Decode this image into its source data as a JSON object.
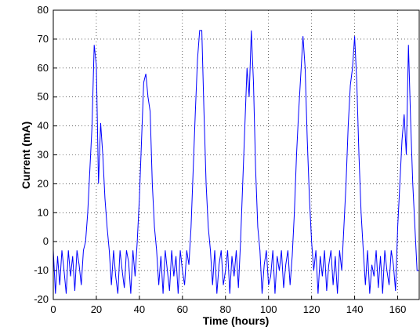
{
  "chart_data": {
    "type": "line",
    "xlabel": "Time (hours)",
    "ylabel": "Current (mA)",
    "xlim": [
      0,
      170
    ],
    "ylim": [
      -20,
      80
    ],
    "xticks": [
      0,
      20,
      40,
      60,
      80,
      100,
      120,
      140,
      160
    ],
    "yticks": [
      -20,
      -10,
      0,
      10,
      20,
      30,
      40,
      50,
      60,
      70,
      80
    ],
    "grid": true,
    "x": [
      0,
      1,
      2,
      3,
      4,
      5,
      6,
      7,
      8,
      9,
      10,
      11,
      12,
      13,
      14,
      15,
      16,
      17,
      18,
      19,
      20,
      21,
      22,
      23,
      24,
      25,
      26,
      27,
      28,
      29,
      30,
      31,
      32,
      33,
      34,
      35,
      36,
      37,
      38,
      39,
      40,
      41,
      42,
      43,
      44,
      45,
      46,
      47,
      48,
      49,
      50,
      51,
      52,
      53,
      54,
      55,
      56,
      57,
      58,
      59,
      60,
      61,
      62,
      63,
      64,
      65,
      66,
      67,
      68,
      69,
      70,
      71,
      72,
      73,
      74,
      75,
      76,
      77,
      78,
      79,
      80,
      81,
      82,
      83,
      84,
      85,
      86,
      87,
      88,
      89,
      90,
      91,
      92,
      93,
      94,
      95,
      96,
      97,
      98,
      99,
      100,
      101,
      102,
      103,
      104,
      105,
      106,
      107,
      108,
      109,
      110,
      111,
      112,
      113,
      114,
      115,
      116,
      117,
      118,
      119,
      120,
      121,
      122,
      123,
      124,
      125,
      126,
      127,
      128,
      129,
      130,
      131,
      132,
      133,
      134,
      135,
      136,
      137,
      138,
      139,
      140,
      141,
      142,
      143,
      144,
      145,
      146,
      147,
      148,
      149,
      150,
      151,
      152,
      153,
      154,
      155,
      156,
      157,
      158,
      159,
      160,
      161,
      162,
      163,
      164,
      165,
      166,
      167,
      168,
      169,
      170
    ],
    "series": [
      {
        "color": "#0000ff",
        "values": [
          -3,
          -18,
          -5,
          -15,
          -3,
          -10,
          -18,
          -3,
          -12,
          -5,
          -17,
          -3,
          -8,
          -15,
          -3,
          0,
          10,
          25,
          40,
          68,
          61,
          20,
          41,
          30,
          15,
          5,
          -3,
          -15,
          -3,
          -12,
          -18,
          -3,
          -10,
          -16,
          -3,
          -7,
          -18,
          -3,
          -12,
          0,
          15,
          35,
          55,
          58,
          50,
          45,
          20,
          5,
          -3,
          -15,
          -5,
          -18,
          -3,
          -10,
          -17,
          -3,
          -12,
          -5,
          -18,
          -3,
          -10,
          -15,
          -3,
          -8,
          5,
          25,
          45,
          63,
          73,
          73,
          45,
          20,
          5,
          -3,
          -15,
          -3,
          -18,
          -8,
          -3,
          -15,
          -10,
          -3,
          -18,
          -5,
          -12,
          -3,
          -16,
          0,
          20,
          40,
          60,
          50,
          73,
          55,
          25,
          5,
          -3,
          -18,
          -8,
          -3,
          -15,
          -12,
          -3,
          -18,
          -5,
          -10,
          -3,
          -16,
          -8,
          -3,
          -15,
          -5,
          10,
          30,
          45,
          58,
          71,
          60,
          35,
          15,
          0,
          -10,
          -3,
          -18,
          -5,
          -12,
          -3,
          -17,
          -8,
          -3,
          -15,
          -5,
          -18,
          -3,
          -10,
          5,
          20,
          40,
          54,
          60,
          71,
          55,
          30,
          10,
          -3,
          -15,
          -3,
          -18,
          -8,
          -12,
          -3,
          -16,
          -5,
          -18,
          -3,
          -10,
          -15,
          -3,
          -8,
          -17,
          5,
          20,
          35,
          44,
          30,
          68,
          42,
          20,
          5,
          -10,
          -10
        ]
      }
    ]
  }
}
